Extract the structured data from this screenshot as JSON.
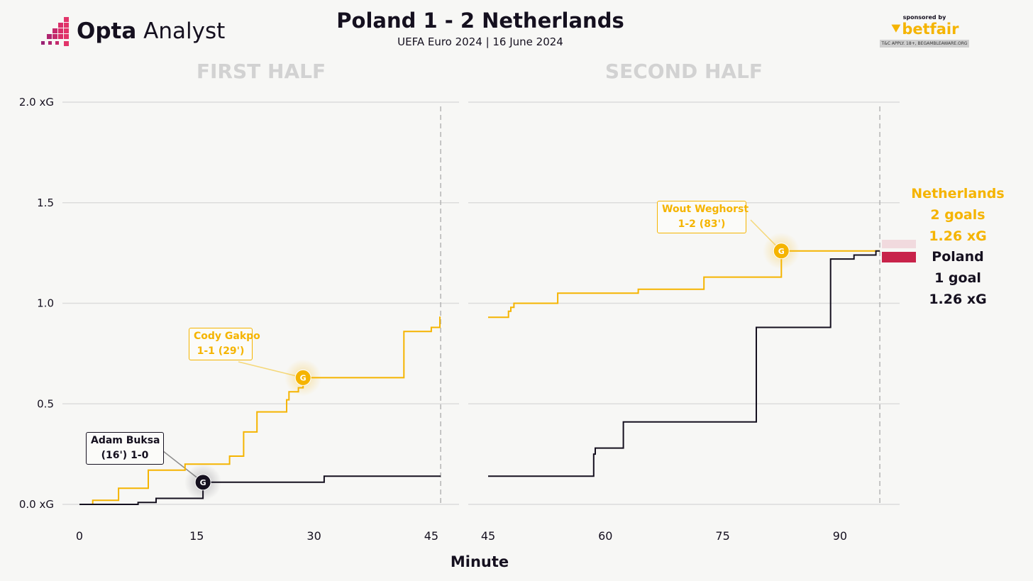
{
  "brand": {
    "logo_bold": "Opta",
    "logo_light": "Analyst",
    "sponsor_label": "sponsored by",
    "sponsor_name": "betfair",
    "sponsor_small": "T&C APPLY. 18+, BEGAMBLEAWARE.ORG"
  },
  "colors": {
    "netherlands": "#f5b400",
    "poland": "#15101f",
    "gridline": "#dcdcdc",
    "half_title": "#d2d2d2",
    "poland_flag_red": "#c8234a"
  },
  "chart_data": {
    "type": "line",
    "title": "Poland 1 - 2 Netherlands",
    "subtitle": "UEFA Euro 2024 | 16 June 2024",
    "xlabel": "Minute",
    "ylabel": "",
    "step": true,
    "grid": true,
    "ylim": [
      0,
      2.0
    ],
    "yticks": [
      {
        "value": 0.0,
        "label": "0.0 xG"
      },
      {
        "value": 0.5,
        "label": "0.5"
      },
      {
        "value": 1.0,
        "label": "1.0"
      },
      {
        "value": 1.5,
        "label": "1.5"
      },
      {
        "value": 2.0,
        "label": "2.0 xG"
      }
    ],
    "panels": [
      {
        "title": "FIRST HALF",
        "xlim": [
          0,
          45
        ],
        "xticks": [
          0,
          15,
          30,
          45
        ],
        "end_marker": 46.2,
        "series": [
          {
            "name": "Netherlands",
            "color": "#f5b400",
            "points": [
              [
                1.7,
                0.0
              ],
              [
                1.7,
                0.02
              ],
              [
                5.0,
                0.02
              ],
              [
                5.0,
                0.08
              ],
              [
                8.8,
                0.08
              ],
              [
                8.8,
                0.17
              ],
              [
                13.5,
                0.17
              ],
              [
                13.5,
                0.2
              ],
              [
                19.2,
                0.2
              ],
              [
                19.2,
                0.24
              ],
              [
                21.0,
                0.24
              ],
              [
                21.0,
                0.36
              ],
              [
                22.7,
                0.36
              ],
              [
                22.7,
                0.46
              ],
              [
                26.5,
                0.46
              ],
              [
                26.5,
                0.52
              ],
              [
                26.8,
                0.52
              ],
              [
                26.8,
                0.56
              ],
              [
                28.0,
                0.56
              ],
              [
                28.0,
                0.58
              ],
              [
                28.6,
                0.58
              ],
              [
                28.6,
                0.63
              ],
              [
                41.5,
                0.63
              ],
              [
                41.5,
                0.86
              ],
              [
                45.0,
                0.86
              ],
              [
                45.0,
                0.88
              ],
              [
                46.1,
                0.88
              ],
              [
                46.1,
                0.93
              ],
              [
                46.2,
                0.93
              ]
            ]
          },
          {
            "name": "Poland",
            "color": "#15101f",
            "points": [
              [
                0.0,
                0.0
              ],
              [
                7.5,
                0.0
              ],
              [
                7.5,
                0.01
              ],
              [
                9.8,
                0.01
              ],
              [
                9.8,
                0.03
              ],
              [
                15.8,
                0.03
              ],
              [
                15.8,
                0.11
              ],
              [
                31.3,
                0.11
              ],
              [
                31.3,
                0.14
              ],
              [
                46.2,
                0.14
              ]
            ]
          }
        ],
        "goals": [
          {
            "team": "Poland",
            "minute": 15.8,
            "xg": 0.11,
            "marker": "G",
            "label_line1": "Adam Buksa",
            "label_line2": "(16') 1-0"
          },
          {
            "team": "Netherlands",
            "minute": 28.6,
            "xg": 0.63,
            "marker": "G",
            "label_line1": "Cody Gakpo",
            "label_line2": "1-1 (29')"
          }
        ]
      },
      {
        "title": "SECOND HALF",
        "xlim": [
          45,
          95
        ],
        "xticks": [
          45,
          60,
          75,
          90
        ],
        "end_marker": 95.1,
        "series": [
          {
            "name": "Netherlands",
            "color": "#f5b400",
            "points": [
              [
                45.0,
                0.93
              ],
              [
                47.6,
                0.93
              ],
              [
                47.6,
                0.96
              ],
              [
                47.9,
                0.96
              ],
              [
                47.9,
                0.98
              ],
              [
                48.3,
                0.98
              ],
              [
                48.3,
                1.0
              ],
              [
                53.9,
                1.0
              ],
              [
                53.9,
                1.05
              ],
              [
                64.2,
                1.05
              ],
              [
                64.2,
                1.07
              ],
              [
                72.6,
                1.07
              ],
              [
                72.6,
                1.13
              ],
              [
                82.5,
                1.13
              ],
              [
                82.5,
                1.26
              ],
              [
                95.1,
                1.26
              ]
            ]
          },
          {
            "name": "Poland",
            "color": "#15101f",
            "points": [
              [
                45.0,
                0.14
              ],
              [
                58.5,
                0.14
              ],
              [
                58.5,
                0.25
              ],
              [
                58.7,
                0.25
              ],
              [
                58.7,
                0.28
              ],
              [
                62.3,
                0.28
              ],
              [
                62.3,
                0.41
              ],
              [
                79.3,
                0.41
              ],
              [
                79.3,
                0.88
              ],
              [
                88.8,
                0.88
              ],
              [
                88.8,
                1.22
              ],
              [
                91.8,
                1.22
              ],
              [
                91.8,
                1.24
              ],
              [
                94.6,
                1.24
              ],
              [
                94.6,
                1.26
              ],
              [
                95.1,
                1.26
              ]
            ]
          }
        ],
        "goals": [
          {
            "team": "Netherlands",
            "minute": 82.5,
            "xg": 1.26,
            "marker": "G",
            "label_line1": "Wout Weghorst",
            "label_line2": "1-2 (83')"
          }
        ]
      }
    ],
    "legend": [
      {
        "team": "Netherlands",
        "goals": "2 goals",
        "xg": "1.26 xG",
        "color": "#f5b400"
      },
      {
        "team": "Poland",
        "goals": "1 goal",
        "xg": "1.26 xG",
        "color": "#15101f"
      }
    ],
    "legend_placement": "right"
  }
}
